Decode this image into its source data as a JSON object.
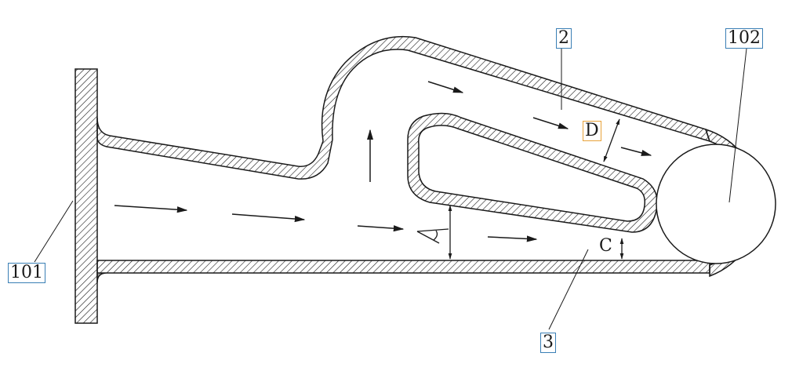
{
  "labels": {
    "part_101": "101",
    "part_102": "102",
    "part_2": "2",
    "part_3": "3",
    "dim_D": "D",
    "dim_C": "C"
  },
  "colors": {
    "line": "#1a1a1a",
    "hatch": "#1a1a1a",
    "box_blue": "#3a7fb5",
    "box_orange": "#e8a23a"
  }
}
